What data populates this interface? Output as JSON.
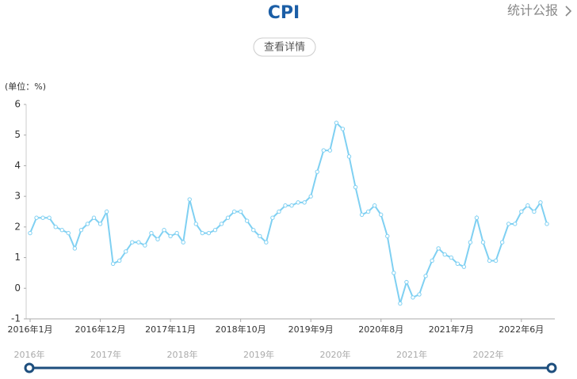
{
  "header": {
    "title": "CPI",
    "button": "查看详情",
    "link": "统计公报"
  },
  "chart_data": {
    "type": "line",
    "y_label": "(单位：%)",
    "categories": [
      "2016年1月",
      null,
      null,
      null,
      null,
      null,
      null,
      null,
      null,
      null,
      null,
      "2016年12月",
      null,
      null,
      null,
      null,
      null,
      null,
      null,
      null,
      null,
      null,
      "2017年11月",
      null,
      null,
      null,
      null,
      null,
      null,
      null,
      null,
      null,
      null,
      "2018年10月",
      null,
      null,
      null,
      null,
      null,
      null,
      null,
      null,
      null,
      null,
      "2019年9月",
      null,
      null,
      null,
      null,
      null,
      null,
      null,
      null,
      null,
      null,
      "2020年8月",
      null,
      null,
      null,
      null,
      null,
      null,
      null,
      null,
      null,
      null,
      "2021年7月",
      null,
      null,
      null,
      null,
      null,
      null,
      null,
      null,
      null,
      null,
      "2022年6月",
      null,
      null,
      null,
      null
    ],
    "series": [
      {
        "name": "CPI",
        "color": "#7fd0f2",
        "values": [
          1.8,
          2.3,
          2.3,
          2.3,
          2.0,
          1.9,
          1.8,
          1.3,
          1.9,
          2.1,
          2.3,
          2.1,
          2.5,
          0.8,
          0.9,
          1.2,
          1.5,
          1.5,
          1.4,
          1.8,
          1.6,
          1.9,
          1.7,
          1.8,
          1.5,
          2.9,
          2.1,
          1.8,
          1.8,
          1.9,
          2.1,
          2.3,
          2.5,
          2.5,
          2.2,
          1.9,
          1.7,
          1.5,
          2.3,
          2.5,
          2.7,
          2.7,
          2.8,
          2.8,
          3.0,
          3.8,
          4.5,
          4.5,
          5.4,
          5.2,
          4.3,
          3.3,
          2.4,
          2.5,
          2.7,
          2.4,
          1.7,
          0.5,
          -0.5,
          0.2,
          -0.3,
          -0.2,
          0.4,
          0.9,
          1.3,
          1.1,
          1.0,
          0.8,
          0.7,
          1.5,
          2.3,
          1.5,
          0.9,
          0.9,
          1.5,
          2.1,
          2.1,
          2.5,
          2.7,
          2.5,
          2.8,
          2.1
        ]
      }
    ],
    "ylim": [
      -1,
      6
    ],
    "yticks": [
      -1,
      0,
      1,
      2,
      3,
      4,
      5,
      6
    ],
    "grid": false,
    "slider": [
      "2016年",
      "2017年",
      "2018年",
      "2019年",
      "2020年",
      "2021年",
      "2022年"
    ]
  }
}
